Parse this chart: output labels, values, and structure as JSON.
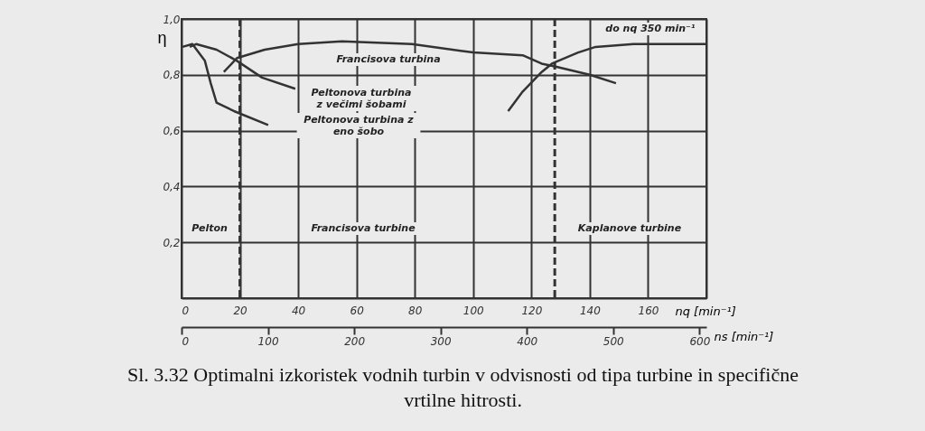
{
  "chart_data": {
    "type": "line",
    "title": "Sl. 3.32 Optimalni izkoristek vodnih turbin v odvisnosti od tipa turbine in specifične\nvrtilne hitrosti.",
    "xlabel": "nq [min⁻¹]",
    "ylabel": "η",
    "x2label": "ns [min⁻¹]",
    "xlim": [
      0,
      180
    ],
    "xticks": [
      0,
      20,
      40,
      60,
      80,
      100,
      120,
      140,
      160,
      {
        "value": 180,
        "label": null
      }
    ],
    "ylim": [
      0,
      1.0
    ],
    "yticks": [
      {
        "value": 0,
        "label": null
      },
      {
        "value": 0.2,
        "label": "0,2"
      },
      {
        "value": 0.4,
        "label": "0,4"
      },
      {
        "value": 0.6,
        "label": "0,6"
      },
      {
        "value": 0.8,
        "label": "0,8"
      },
      {
        "value": 1.0,
        "label": "1,0"
      }
    ],
    "x2lim": [
      0,
      608
    ],
    "x2ticks": [
      0,
      100,
      200,
      300,
      400,
      500,
      600
    ],
    "grid": true,
    "line_style": "solid",
    "marker": "none",
    "series": [
      {
        "color": "#333333",
        "x": [
          14.5,
          19,
          28.5,
          40,
          55,
          79,
          100,
          117,
          123.5,
          128,
          140,
          149
        ],
        "values": [
          0.81,
          0.86,
          0.89,
          0.91,
          0.92,
          0.91,
          0.88,
          0.87,
          0.84,
          0.83,
          0.8,
          0.77
        ]
      },
      {
        "color": "#333333",
        "x": [
          2.8,
          5,
          12,
          19,
          27.6,
          39
        ],
        "values": [
          0.9,
          0.91,
          0.89,
          0.85,
          0.79,
          0.75
        ]
      },
      {
        "color": "#333333",
        "x": [
          0.3,
          3.7,
          8,
          10,
          12,
          18,
          29.7
        ],
        "values": [
          0.9,
          0.91,
          0.85,
          0.77,
          0.7,
          0.67,
          0.62
        ]
      },
      {
        "color": "#333333",
        "x": [
          112,
          117,
          123.5,
          127,
          136,
          142,
          155,
          180
        ],
        "values": [
          0.67,
          0.74,
          0.81,
          0.84,
          0.88,
          0.9,
          0.91,
          0.91
        ]
      }
    ],
    "ref_lines": [
      {
        "axis": "x",
        "value": 20,
        "line_style": "dashed",
        "color": "#333333"
      },
      {
        "axis": "x",
        "value": 128,
        "line_style": "dashed",
        "color": "#333333"
      }
    ],
    "annotations": [
      "Francisova turbina",
      "Peltonova turbina\nz večimi šobami",
      "Peltonova turbina z\neno šobo",
      "do nq 350 min⁻¹",
      "Pelton",
      "Francisova turbine",
      "Kaplanove turbine"
    ]
  }
}
